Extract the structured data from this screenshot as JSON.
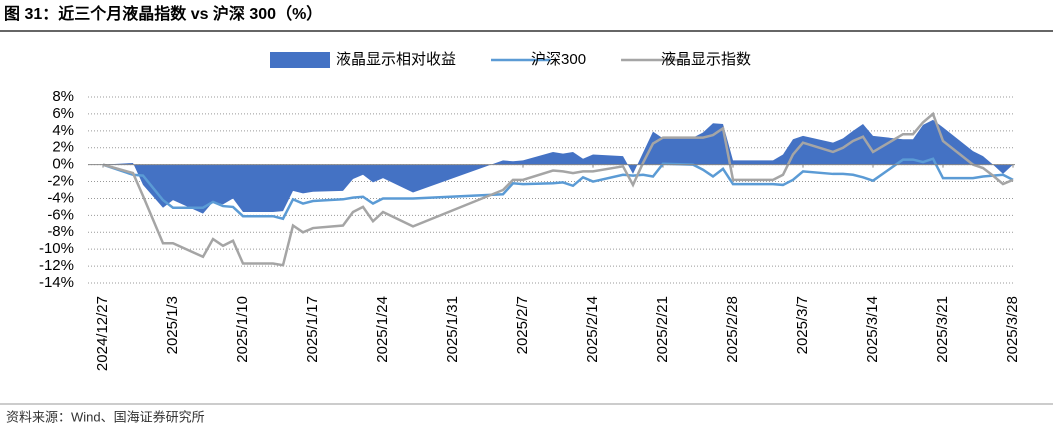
{
  "chart_data": {
    "type": "line",
    "title": "图 31：近三个月液晶指数 vs 沪深 300（%）",
    "source": "资料来源：Wind、国海证券研究所",
    "x": [
      "2024/12/27",
      "2024/12/30",
      "2024/12/31",
      "2025/1/2",
      "2025/1/3",
      "2025/1/6",
      "2025/1/7",
      "2025/1/8",
      "2025/1/9",
      "2025/1/10",
      "2025/1/13",
      "2025/1/14",
      "2025/1/15",
      "2025/1/16",
      "2025/1/17",
      "2025/1/20",
      "2025/1/21",
      "2025/1/22",
      "2025/1/23",
      "2025/1/24",
      "2025/1/27",
      "2025/2/5",
      "2025/2/6",
      "2025/2/7",
      "2025/2/10",
      "2025/2/11",
      "2025/2/12",
      "2025/2/13",
      "2025/2/14",
      "2025/2/17",
      "2025/2/18",
      "2025/2/19",
      "2025/2/20",
      "2025/2/21",
      "2025/2/24",
      "2025/2/25",
      "2025/2/26",
      "2025/2/27",
      "2025/2/28",
      "2025/3/3",
      "2025/3/4",
      "2025/3/5",
      "2025/3/6",
      "2025/3/7",
      "2025/3/10",
      "2025/3/11",
      "2025/3/12",
      "2025/3/13",
      "2025/3/14",
      "2025/3/17",
      "2025/3/18",
      "2025/3/19",
      "2025/3/20",
      "2025/3/21",
      "2025/3/24",
      "2025/3/25",
      "2025/3/26",
      "2025/3/27",
      "2025/3/28"
    ],
    "series": [
      {
        "name": "液晶显示相对收益",
        "type": "area",
        "color": "#4472c4",
        "values": [
          0,
          0.2,
          -2.4,
          -5.1,
          -4.2,
          -5.8,
          -4.4,
          -4.7,
          -4,
          -5.6,
          -5.6,
          -5.5,
          -3.1,
          -3.4,
          -3.2,
          -3.1,
          -1.7,
          -1.2,
          -2.1,
          -1.6,
          -3.3,
          0.5,
          0.4,
          0.5,
          1.5,
          1.3,
          1.5,
          0.7,
          1.2,
          1.0,
          -1.1,
          1.4,
          3.9,
          3.1,
          3.2,
          3.8,
          4.9,
          4.8,
          0.5,
          0.5,
          0.5,
          1.2,
          3.0,
          3.4,
          2.6,
          3.1,
          4,
          4.8,
          3.4,
          3.0,
          3.0,
          4.7,
          5.3,
          4.4,
          1.6,
          1.0,
          0,
          -1.1,
          0
        ]
      },
      {
        "name": "沪深300",
        "type": "line",
        "color": "#5b9bd5",
        "values": [
          0,
          -1.2,
          -1.3,
          -4.2,
          -5.1,
          -5.1,
          -4.4,
          -4.9,
          -5,
          -6.1,
          -6.1,
          -6.4,
          -4.1,
          -4.6,
          -4.3,
          -4.1,
          -3.9,
          -3.8,
          -4.6,
          -4,
          -4,
          -3.5,
          -2.2,
          -2.3,
          -2.2,
          -2.1,
          -2.5,
          -1.5,
          -2,
          -1.2,
          -1.3,
          -1.2,
          -1.4,
          0.1,
          0,
          -0.6,
          -1.4,
          -0.5,
          -2.3,
          -2.3,
          -2.3,
          -2.4,
          -1.8,
          -0.8,
          -1.1,
          -1.1,
          -1.2,
          -1.5,
          -1.9,
          0.6,
          0.6,
          0.3,
          0.7,
          -1.6,
          -1.6,
          -1.4,
          -1.3,
          -1.2,
          -1.8
        ]
      },
      {
        "name": "液晶显示指数",
        "type": "line",
        "color": "#a5a5a5",
        "values": [
          0,
          -1,
          -3.7,
          -9.3,
          -9.3,
          -10.9,
          -8.8,
          -9.6,
          -9,
          -11.7,
          -11.7,
          -11.9,
          -7.2,
          -8,
          -7.5,
          -7.2,
          -5.6,
          -5,
          -6.7,
          -5.6,
          -7.3,
          -3,
          -1.8,
          -1.8,
          -0.7,
          -0.8,
          -1,
          -0.8,
          -0.8,
          -0.2,
          -2.4,
          0.2,
          2.5,
          3.2,
          3.2,
          3.2,
          3.5,
          4.3,
          -1.8,
          -1.8,
          -1.8,
          -1.2,
          1.2,
          2.6,
          1.5,
          2,
          2.8,
          3.3,
          1.5,
          3.6,
          3.6,
          5,
          6,
          2.8,
          0,
          -0.4,
          -1.3,
          -2.3,
          -1.8
        ]
      }
    ],
    "xlim": [
      "2024/12/27",
      "2025/3/28"
    ],
    "xticks": [
      "2024/12/27",
      "2025/1/3",
      "2025/1/10",
      "2025/1/17",
      "2025/1/24",
      "2025/1/31",
      "2025/2/7",
      "2025/2/14",
      "2025/2/21",
      "2025/2/28",
      "2025/3/7",
      "2025/3/14",
      "2025/3/21",
      "2025/3/28"
    ],
    "ylim": [
      -14,
      8
    ],
    "yticks": [
      {
        "value": 8,
        "label": "8%"
      },
      {
        "value": 6,
        "label": "6%"
      },
      {
        "value": 4,
        "label": "4%"
      },
      {
        "value": 2,
        "label": "2%"
      },
      {
        "value": 0,
        "label": "0%"
      },
      {
        "value": -2,
        "label": "-2%"
      },
      {
        "value": -4,
        "label": "-4%"
      },
      {
        "value": -6,
        "label": "-6%"
      },
      {
        "value": -8,
        "label": "-8%"
      },
      {
        "value": -10,
        "label": "-10%"
      },
      {
        "value": -12,
        "label": "-12%"
      },
      {
        "value": -14,
        "label": "-14%"
      }
    ],
    "grid": true,
    "legend": "top"
  }
}
